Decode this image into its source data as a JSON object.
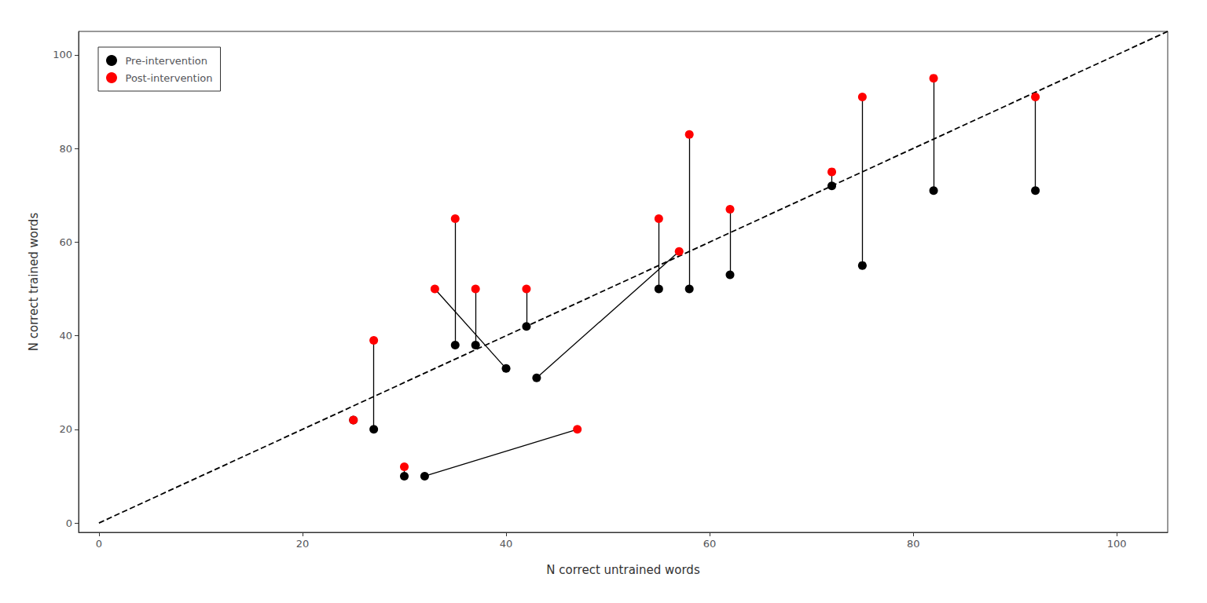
{
  "chart_data": {
    "type": "scatter",
    "xlabel": "N correct untrained words",
    "ylabel": "N correct trained words",
    "xlim": [
      -2,
      105
    ],
    "ylim": [
      -2,
      105
    ],
    "xticks": [
      0,
      20,
      40,
      60,
      80,
      100
    ],
    "yticks": [
      0,
      20,
      40,
      60,
      80,
      100
    ],
    "grid": false,
    "legend": "upper left",
    "series": [
      {
        "name": "Pre-intervention",
        "color": "#000000",
        "values": [
          [
            25,
            22
          ],
          [
            27,
            20
          ],
          [
            30,
            10
          ],
          [
            32,
            10
          ],
          [
            35,
            38
          ],
          [
            37,
            38
          ],
          [
            40,
            33
          ],
          [
            42,
            42
          ],
          [
            43,
            31
          ],
          [
            55,
            50
          ],
          [
            58,
            50
          ],
          [
            62,
            53
          ],
          [
            72,
            72
          ],
          [
            75,
            55
          ],
          [
            82,
            71
          ],
          [
            92,
            71
          ]
        ]
      },
      {
        "name": "Post-intervention",
        "color": "#ff0000",
        "values": [
          [
            25,
            22
          ],
          [
            27,
            39
          ],
          [
            30,
            12
          ],
          [
            47,
            20
          ],
          [
            35,
            65
          ],
          [
            37,
            50
          ],
          [
            33,
            50
          ],
          [
            42,
            50
          ],
          [
            57,
            58
          ],
          [
            55,
            65
          ],
          [
            58,
            83
          ],
          [
            62,
            67
          ],
          [
            72,
            75
          ],
          [
            75,
            91
          ],
          [
            82,
            95
          ],
          [
            92,
            91
          ]
        ]
      }
    ],
    "pair_lines": {
      "color": "#000000"
    },
    "diagonal": {
      "x": [
        0,
        105
      ],
      "y": [
        0,
        105
      ],
      "color": "#000000",
      "line_style": "dashed"
    }
  }
}
